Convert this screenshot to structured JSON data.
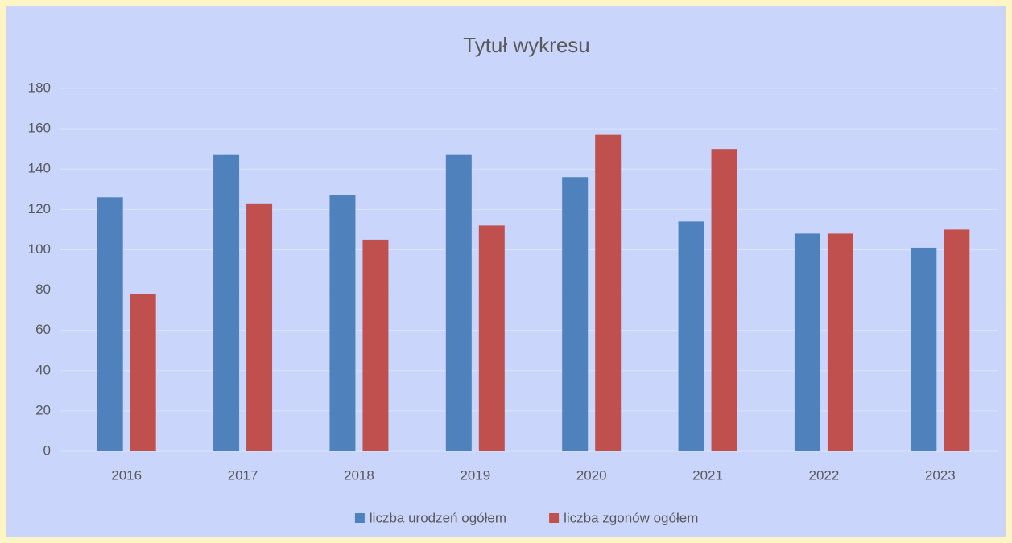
{
  "chart_data": {
    "type": "bar",
    "title": "Tytuł wykresu",
    "categories": [
      "2016",
      "2017",
      "2018",
      "2019",
      "2020",
      "2021",
      "2022",
      "2023"
    ],
    "series": [
      {
        "name": "liczba urodzeń ogółem",
        "color": "#4f81bd",
        "values": [
          126,
          147,
          127,
          147,
          136,
          114,
          108,
          101
        ]
      },
      {
        "name": "liczba zgonów ogółem",
        "color": "#c0504d",
        "values": [
          78,
          123,
          105,
          112,
          157,
          150,
          108,
          110
        ]
      }
    ],
    "ylim": [
      0,
      180
    ],
    "yticks": [
      0,
      20,
      40,
      60,
      80,
      100,
      120,
      140,
      160,
      180
    ],
    "grid": true,
    "legend": "bottom"
  }
}
